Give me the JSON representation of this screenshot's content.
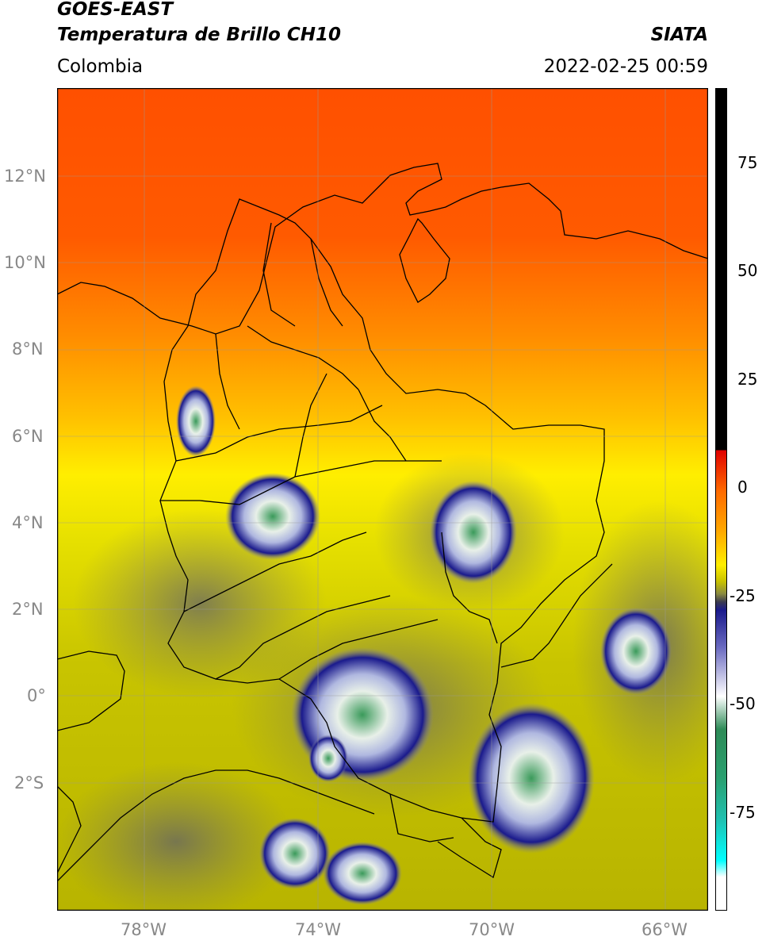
{
  "header": {
    "satellite": "GOES-EAST",
    "product": "Temperatura de Brillo CH10",
    "agency": "SIATA",
    "region": "Colombia",
    "datetime": "2022-02-25 00:59"
  },
  "map": {
    "lat_ticks": [
      "12°N",
      "10°N",
      "8°N",
      "6°N",
      "4°N",
      "2°N",
      "0°",
      "2°S"
    ],
    "lon_ticks": [
      "78°W",
      "74°W",
      "70°W",
      "66°W"
    ],
    "grid": true,
    "colors": {
      "warm": "#ff5a00",
      "mid": "#ffd400",
      "cool": "#b8b800",
      "cold": "#1a1a8c",
      "coldest": "#2e8b57"
    }
  },
  "colorbar": {
    "ticks": [
      "75",
      "50",
      "25",
      "0",
      "-25",
      "-50",
      "-75"
    ],
    "colors": [
      "#000000",
      "#e00000",
      "#ff8c00",
      "#ffff00",
      "#888833",
      "#1a1a8c",
      "#ffffff",
      "#2e8b57",
      "#20b2aa",
      "#00ffff",
      "#ffffff"
    ]
  }
}
